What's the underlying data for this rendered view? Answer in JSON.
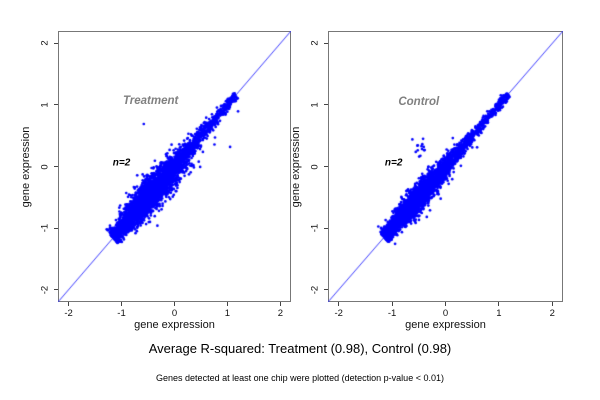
{
  "figure": {
    "caption": "Average R-squared: Treatment (0.98), Control (0.98)",
    "footnote": "Genes detected at least one chip were plotted (detection p-value < 0.01)"
  },
  "colors": {
    "point": "#0000FF",
    "identity_line": "#3A3AFF",
    "box_border": "#777777",
    "tick": "#444444",
    "panel_title": "#808080",
    "text": "#000000"
  },
  "chart_data": [
    {
      "type": "scatter",
      "title": "Treatment",
      "xlabel": "gene expression",
      "ylabel": "gene expression",
      "xlim": [
        -2.2,
        2.2
      ],
      "ylim": [
        -2.2,
        2.2
      ],
      "x_ticks": [
        "-2",
        "-1",
        "0",
        "1",
        "2"
      ],
      "y_ticks": [
        "-2",
        "-1",
        "0",
        "1",
        "2"
      ],
      "x_tick_values": [
        -2,
        -1,
        0,
        1,
        2
      ],
      "y_tick_values": [
        -2,
        -1,
        0,
        1,
        2
      ],
      "grid": false,
      "identity_line": true,
      "r_squared": 0.98,
      "n_chips": 2,
      "annotation": {
        "text": "n=2",
        "pos": [
          -1.0,
          0.05
        ]
      },
      "title_pos": [
        -0.45,
        1.07
      ],
      "cloud": {
        "n": 3800,
        "t_min": -1.16,
        "t_max": 1.16,
        "t_mean": -0.5,
        "t_sd": 0.42,
        "mix_uniform": 0.25,
        "width_mid": 0.115,
        "width_end": 0.035,
        "bulge_center": -0.35,
        "bulge_sd": 0.5,
        "stray_n": 90,
        "stray_sd": 0.16,
        "seed": 12345
      },
      "outliers": [
        [
          -0.58,
          0.69
        ]
      ]
    },
    {
      "type": "scatter",
      "title": "Control",
      "xlabel": "gene expression",
      "ylabel": "gene expression",
      "xlim": [
        -2.2,
        2.2
      ],
      "ylim": [
        -2.2,
        2.2
      ],
      "x_ticks": [
        "-2",
        "-1",
        "0",
        "1",
        "2"
      ],
      "y_ticks": [
        "-2",
        "-1",
        "0",
        "1",
        "2"
      ],
      "x_tick_values": [
        -2,
        -1,
        0,
        1,
        2
      ],
      "y_tick_values": [
        -2,
        -1,
        0,
        1,
        2
      ],
      "grid": false,
      "identity_line": true,
      "r_squared": 0.98,
      "n_chips": 2,
      "annotation": {
        "text": "n=2",
        "pos": [
          -0.97,
          0.05
        ]
      },
      "title_pos": [
        -0.5,
        1.05
      ],
      "cloud": {
        "n": 3800,
        "t_min": -1.15,
        "t_max": 1.17,
        "t_mean": -0.55,
        "t_sd": 0.4,
        "mix_uniform": 0.25,
        "width_mid": 0.085,
        "width_end": 0.03,
        "bulge_center": -0.45,
        "bulge_sd": 0.5,
        "stray_n": 40,
        "stray_sd": 0.12,
        "seed": 777
      },
      "outlier_cluster": {
        "center": [
          -0.48,
          0.3
        ],
        "n": 12,
        "spread": 0.11
      },
      "outliers": [
        [
          -0.62,
          0.44
        ],
        [
          -0.42,
          0.45
        ]
      ]
    }
  ]
}
